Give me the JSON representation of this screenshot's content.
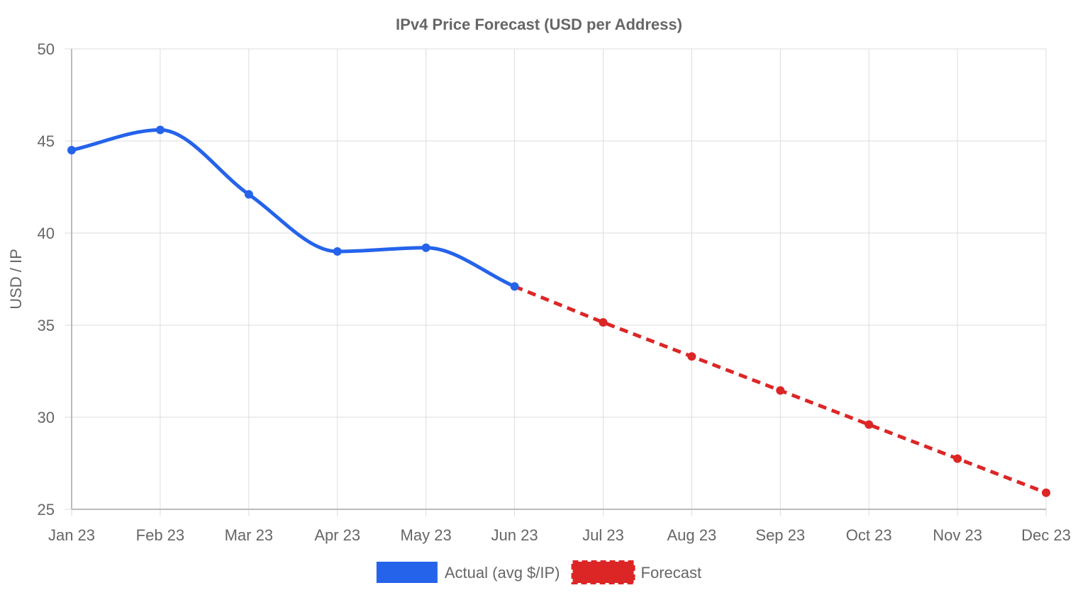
{
  "chart_data": {
    "type": "line",
    "title": "IPv4 Price Forecast (USD per Address)",
    "xlabel": "",
    "ylabel": "USD / IP",
    "categories": [
      "Jan 23",
      "Feb 23",
      "Mar 23",
      "Apr 23",
      "May 23",
      "Jun 23",
      "Jul 23",
      "Aug 23",
      "Sep 23",
      "Oct 23",
      "Nov 23",
      "Dec 23"
    ],
    "ylim": [
      25,
      50
    ],
    "yticks": [
      "25",
      "30",
      "35",
      "40",
      "45",
      "50"
    ],
    "grid": true,
    "legend_position": "bottom",
    "series": [
      {
        "name": "Actual (avg $/IP)",
        "color": "#2563eb",
        "style": "solid-smooth",
        "values": [
          44.5,
          45.6,
          42.1,
          39.0,
          39.2,
          37.1,
          null,
          null,
          null,
          null,
          null,
          null
        ]
      },
      {
        "name": "Forecast",
        "color": "#dc2626",
        "style": "dashed",
        "values": [
          null,
          null,
          null,
          null,
          null,
          37.1,
          35.15,
          33.3,
          31.45,
          29.6,
          27.75,
          25.9
        ]
      }
    ]
  }
}
